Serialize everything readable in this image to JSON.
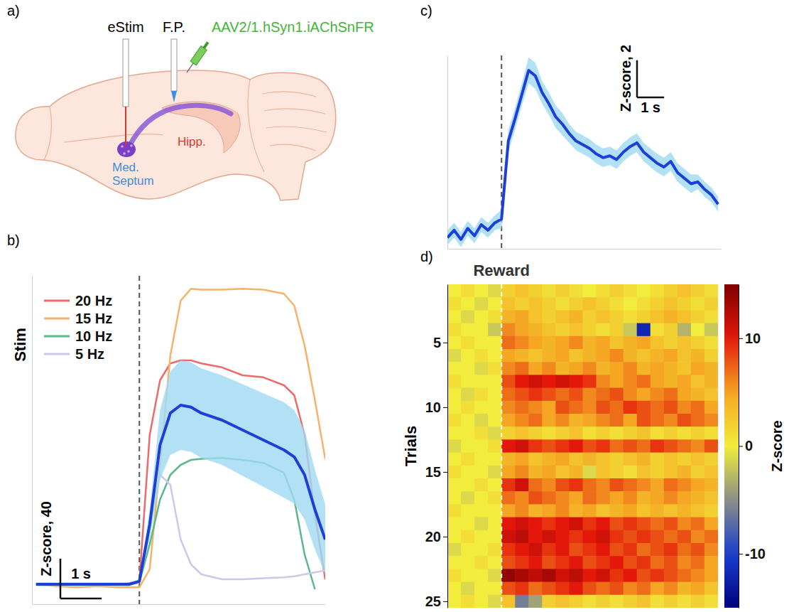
{
  "diagram": {
    "panel": "a)",
    "labels": {
      "estim": "eStim",
      "fp": "F.P.",
      "virus": "AAV2/1.hSyn1.iAChSnFR",
      "septum": [
        "Med.",
        "Septum"
      ],
      "hippocampus": "Hipp."
    }
  },
  "chart_data": [
    {
      "type": "line",
      "panel": "b)",
      "x": [
        -2.5,
        -2,
        -1.5,
        -1,
        -0.5,
        -0.25,
        0,
        0.25,
        0.5,
        0.75,
        1,
        1.25,
        1.5,
        2,
        2.5,
        3,
        3.5,
        3.75,
        4,
        4.25,
        4.5
      ],
      "xlim": [
        -2.6,
        4.5
      ],
      "ylim": [
        -20,
        310
      ],
      "tick_labels": false,
      "legend": "top-left",
      "legend_title": "Stim",
      "vline": 0,
      "scale_bar": {
        "x": 1,
        "x_label": "1 s",
        "y": 40,
        "y_label": "Z-score, 40"
      },
      "series": [
        {
          "name": "20 Hz",
          "color": "#ec6a6a",
          "values": [
            0,
            0,
            0,
            0,
            0,
            1,
            3,
            150,
            205,
            222,
            225,
            225,
            222,
            218,
            210,
            208,
            200,
            190,
            150,
            70,
            5
          ]
        },
        {
          "name": "15 Hz",
          "color": "#f6b26b",
          "values": [
            0,
            -2,
            -3,
            -2,
            -3,
            -3,
            -3,
            15,
            120,
            230,
            285,
            297,
            296,
            296,
            297,
            296,
            292,
            280,
            240,
            185,
            126
          ]
        },
        {
          "name": "10 Hz",
          "color": "#5cb88a",
          "values": [
            0,
            0,
            0,
            0,
            0,
            0,
            2,
            40,
            85,
            110,
            120,
            125,
            126,
            127,
            125,
            122,
            112,
            85,
            30,
            -5,
            null
          ]
        },
        {
          "name": "5 Hz",
          "color": "#cfc6ec",
          "values": [
            0,
            0,
            0,
            0,
            0,
            0,
            3,
            60,
            110,
            100,
            45,
            20,
            10,
            5,
            5,
            6,
            7,
            8,
            10,
            12,
            14
          ]
        },
        {
          "color": "#1d3fd8",
          "values": [
            0,
            0,
            0,
            0,
            0,
            0,
            3,
            60,
            140,
            172,
            180,
            178,
            172,
            165,
            155,
            145,
            135,
            128,
            110,
            75,
            45
          ],
          "error": [
            2,
            2,
            2,
            2,
            2,
            2,
            2,
            15,
            35,
            42,
            45,
            45,
            45,
            45,
            46,
            47,
            48,
            47,
            45,
            40,
            35
          ]
        }
      ]
    },
    {
      "type": "line",
      "panel": "c)",
      "x": [
        -2,
        -1.75,
        -1.5,
        -1.25,
        -1,
        -0.75,
        -0.5,
        -0.25,
        0,
        0.25,
        0.5,
        0.75,
        1,
        1.25,
        1.5,
        1.75,
        2,
        2.25,
        2.5,
        2.75,
        3,
        3.25,
        3.5,
        3.75,
        4,
        4.25,
        4.5,
        4.75,
        5,
        5.25,
        5.5,
        5.75,
        6,
        6.25,
        6.5,
        6.75,
        7,
        7.25,
        7.5,
        7.75,
        8
      ],
      "xlim": [
        -2,
        8.1
      ],
      "ylim": [
        -0.8,
        9.6
      ],
      "tick_labels": false,
      "vline": 0,
      "scale_bar": {
        "x": 1,
        "x_label": "1 s",
        "y": 2,
        "y_label": "Z-score, 2"
      },
      "series": [
        {
          "color": "#1d3fd8",
          "values": [
            -0.2,
            0.2,
            -0.3,
            0.3,
            -0.1,
            0.5,
            0.2,
            0.6,
            0.8,
            5.0,
            6.2,
            7.5,
            8.8,
            8.5,
            7.6,
            7.0,
            6.3,
            5.9,
            5.4,
            5.0,
            4.8,
            4.6,
            4.3,
            4.1,
            4.2,
            4.0,
            4.4,
            4.7,
            4.9,
            4.4,
            4.1,
            3.8,
            3.6,
            3.9,
            3.3,
            3.0,
            2.7,
            2.8,
            2.4,
            2.1,
            1.6
          ],
          "error": [
            0.4,
            0.4,
            0.4,
            0.4,
            0.4,
            0.4,
            0.4,
            0.4,
            0.5,
            0.6,
            0.6,
            0.6,
            0.7,
            0.7,
            0.6,
            0.6,
            0.6,
            0.6,
            0.5,
            0.5,
            0.5,
            0.5,
            0.5,
            0.5,
            0.5,
            0.5,
            0.5,
            0.5,
            0.5,
            0.5,
            0.5,
            0.5,
            0.5,
            0.5,
            0.5,
            0.5,
            0.5,
            0.4,
            0.4,
            0.4,
            0.4
          ]
        }
      ]
    },
    {
      "type": "heatmap",
      "panel": "d)",
      "x_edges": [
        -2,
        -1.5,
        -1,
        -0.5,
        0,
        0.5,
        1,
        1.5,
        2,
        2.5,
        3,
        3.5,
        4,
        4.5,
        5,
        5.5,
        6,
        6.5,
        7,
        7.5,
        8
      ],
      "xlim": [
        -2,
        8
      ],
      "y": [
        1,
        2,
        3,
        4,
        5,
        6,
        7,
        8,
        9,
        10,
        11,
        12,
        13,
        14,
        15,
        16,
        17,
        18,
        19,
        20,
        21,
        22,
        23,
        24,
        25
      ],
      "ylim": [
        0.5,
        25.5
      ],
      "yticks": [
        5,
        10,
        15,
        20,
        25
      ],
      "ylabel": "Trials",
      "tick_labels": "y",
      "vline": 0,
      "annotation": "Reward",
      "cells": [
        [
          0,
          1,
          0,
          -1,
          2,
          3,
          2,
          1,
          2,
          1,
          0,
          1,
          2,
          1,
          0,
          1,
          2,
          3,
          2,
          1
        ],
        [
          1,
          0,
          -1,
          0,
          3,
          2,
          3,
          2,
          1,
          2,
          3,
          2,
          1,
          0,
          1,
          2,
          3,
          2,
          1,
          2
        ],
        [
          0,
          -1,
          0,
          1,
          4,
          5,
          3,
          2,
          3,
          4,
          2,
          3,
          2,
          1,
          2,
          3,
          4,
          3,
          2,
          1
        ],
        [
          1,
          0,
          0,
          -2,
          6,
          5,
          4,
          3,
          2,
          3,
          2,
          1,
          2,
          -2,
          -12,
          1,
          2,
          -3,
          0,
          -2
        ],
        [
          0,
          1,
          0,
          0,
          7,
          6,
          5,
          4,
          5,
          6,
          4,
          5,
          3,
          4,
          5,
          3,
          2,
          3,
          2,
          1
        ],
        [
          -1,
          0,
          1,
          0,
          5,
          4,
          3,
          4,
          5,
          3,
          4,
          5,
          6,
          4,
          3,
          4,
          5,
          3,
          4,
          2
        ],
        [
          0,
          0,
          -1,
          1,
          6,
          7,
          5,
          6,
          4,
          5,
          6,
          4,
          5,
          6,
          4,
          5,
          4,
          3,
          5,
          4
        ],
        [
          1,
          0,
          0,
          0,
          8,
          10,
          11,
          10,
          11,
          10,
          9,
          6,
          5,
          6,
          7,
          5,
          4,
          5,
          3,
          4
        ],
        [
          0,
          -1,
          1,
          0,
          7,
          8,
          9,
          8,
          7,
          8,
          6,
          7,
          8,
          6,
          5,
          6,
          7,
          5,
          4,
          3
        ],
        [
          0,
          1,
          0,
          0,
          6,
          7,
          6,
          5,
          8,
          7,
          6,
          8,
          7,
          9,
          8,
          7,
          8,
          6,
          7,
          5
        ],
        [
          1,
          0,
          -1,
          0,
          5,
          6,
          7,
          5,
          6,
          4,
          5,
          6,
          7,
          5,
          8,
          7,
          6,
          8,
          7,
          6
        ],
        [
          0,
          0,
          1,
          -1,
          2,
          3,
          2,
          1,
          2,
          3,
          1,
          2,
          1,
          2,
          3,
          1,
          2,
          1,
          2,
          1
        ],
        [
          -1,
          0,
          0,
          1,
          10,
          11,
          9,
          8,
          9,
          10,
          8,
          9,
          7,
          8,
          7,
          9,
          8,
          7,
          6,
          8
        ],
        [
          0,
          1,
          0,
          0,
          4,
          5,
          3,
          4,
          5,
          3,
          4,
          3,
          2,
          3,
          4,
          2,
          3,
          2,
          3,
          2
        ],
        [
          1,
          0,
          0,
          -1,
          5,
          6,
          4,
          5,
          3,
          4,
          -1,
          3,
          2,
          1,
          3,
          2,
          3,
          4,
          2,
          3
        ],
        [
          0,
          0,
          1,
          0,
          9,
          11,
          7,
          6,
          8,
          9,
          7,
          6,
          8,
          7,
          6,
          5,
          7,
          6,
          5,
          4
        ],
        [
          0,
          -1,
          0,
          1,
          7,
          6,
          8,
          7,
          6,
          5,
          7,
          6,
          5,
          6,
          4,
          5,
          6,
          5,
          4,
          3
        ],
        [
          1,
          0,
          0,
          0,
          5,
          6,
          4,
          5,
          6,
          4,
          5,
          3,
          4,
          5,
          3,
          4,
          3,
          4,
          3,
          2
        ],
        [
          0,
          0,
          -1,
          0,
          10,
          11,
          10,
          9,
          10,
          11,
          9,
          10,
          8,
          9,
          8,
          7,
          8,
          6,
          7,
          5
        ],
        [
          0,
          1,
          0,
          0,
          11,
          12,
          10,
          11,
          10,
          9,
          10,
          11,
          9,
          8,
          9,
          8,
          7,
          8,
          6,
          7
        ],
        [
          -1,
          0,
          0,
          1,
          9,
          10,
          11,
          9,
          10,
          8,
          9,
          10,
          8,
          9,
          7,
          8,
          9,
          7,
          8,
          6
        ],
        [
          0,
          0,
          1,
          0,
          8,
          9,
          10,
          8,
          9,
          10,
          8,
          9,
          10,
          8,
          9,
          7,
          8,
          6,
          7,
          5
        ],
        [
          1,
          0,
          0,
          -1,
          14,
          13,
          12,
          13,
          11,
          12,
          10,
          11,
          9,
          10,
          8,
          9,
          8,
          7,
          6,
          5
        ],
        [
          0,
          -1,
          0,
          0,
          8,
          9,
          7,
          8,
          9,
          10,
          8,
          7,
          8,
          6,
          7,
          5,
          6,
          4,
          5,
          3
        ],
        [
          0,
          1,
          0,
          -1,
          3,
          -6,
          -4,
          2,
          3,
          2,
          1,
          2,
          1,
          2,
          3,
          1,
          2,
          1,
          2,
          1
        ]
      ],
      "colorbar": {
        "label": "Z-score",
        "range": [
          -15,
          15
        ],
        "ticks": [
          -10,
          0,
          10
        ]
      }
    }
  ]
}
